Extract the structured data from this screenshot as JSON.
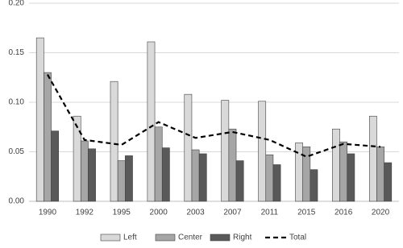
{
  "chart_data": {
    "type": "bar",
    "categories": [
      "1990",
      "1992",
      "1995",
      "2000",
      "2003",
      "2007",
      "2011",
      "2015",
      "2016",
      "2020"
    ],
    "series": [
      {
        "name": "Left",
        "color": "#d9d9d9",
        "values": [
          0.165,
          0.086,
          0.121,
          0.161,
          0.108,
          0.102,
          0.101,
          0.059,
          0.073,
          0.086
        ]
      },
      {
        "name": "Center",
        "color": "#a6a6a6",
        "values": [
          0.13,
          0.061,
          0.041,
          0.075,
          0.052,
          0.073,
          0.047,
          0.055,
          0.06,
          0.055
        ]
      },
      {
        "name": "Right",
        "color": "#595959",
        "values": [
          0.071,
          0.053,
          0.046,
          0.054,
          0.048,
          0.041,
          0.037,
          0.032,
          0.048,
          0.039
        ]
      },
      {
        "name": "Total",
        "color": "#000000",
        "type": "line",
        "line_style": "dashed",
        "values": [
          0.128,
          0.062,
          0.057,
          0.08,
          0.064,
          0.07,
          0.062,
          0.045,
          0.058,
          0.055
        ]
      }
    ],
    "ylim": [
      0,
      0.2
    ],
    "yticks": [
      {
        "value": 0,
        "label": "0.00"
      },
      {
        "value": 0.05,
        "label": "0.05"
      },
      {
        "value": 0.1,
        "label": "0.10"
      },
      {
        "value": 0.15,
        "label": "0.15"
      },
      {
        "value": 0.2,
        "label": "0.20"
      }
    ],
    "grid": true,
    "legend": "bottom"
  }
}
